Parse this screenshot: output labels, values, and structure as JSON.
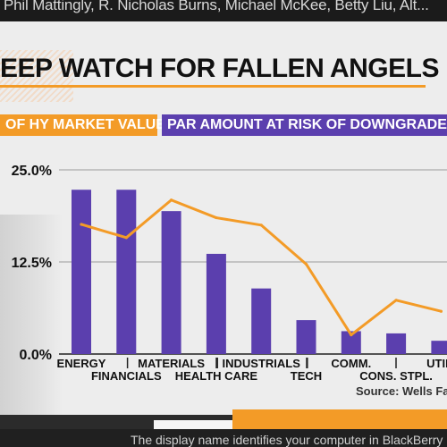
{
  "header": {
    "guests": "Phil Mattingly, R. Nicholas Burns, Michael McKee, Betty Liu, Alt..."
  },
  "title": "EEP WATCH FOR FALLEN ANGELS",
  "legend": {
    "line_label": "OF HY MARKET VALUE",
    "bar_label": "PAR AMOUNT AT RISK OF DOWNGRADE"
  },
  "source": "Source: Wells Fa",
  "footer": {
    "ticker": "The display name identifies your computer in BlackBerry Linki"
  },
  "colors": {
    "bar": "#5b3fae",
    "line": "#f39b27",
    "text": "#111111"
  },
  "chart_data": {
    "type": "bar",
    "title": "EEP WATCH FOR FALLEN ANGELS",
    "categories": [
      "ENERGY",
      "FINANCIALS",
      "MATERIALS",
      "HEALTH CARE",
      "INDUSTRIALS",
      "TECH",
      "COMM.",
      "CONS. STPL.",
      "UTILI"
    ],
    "y_ticks": [
      "25.0%",
      "12.5%",
      "0.0%"
    ],
    "ylim": [
      0,
      25
    ],
    "series": [
      {
        "name": "PAR AMOUNT AT RISK OF DOWNGRADE",
        "type": "bar",
        "values": [
          22.3,
          22.3,
          19.4,
          13.6,
          8.9,
          4.6,
          3.1,
          2.8,
          1.8
        ]
      },
      {
        "name": "OF HY MARKET VALUE",
        "type": "line",
        "values": [
          17.6,
          15.8,
          20.9,
          18.5,
          17.5,
          12.2,
          2.6,
          7.3,
          5.8
        ]
      }
    ],
    "grid": "horizontal",
    "legend_position": "top"
  }
}
